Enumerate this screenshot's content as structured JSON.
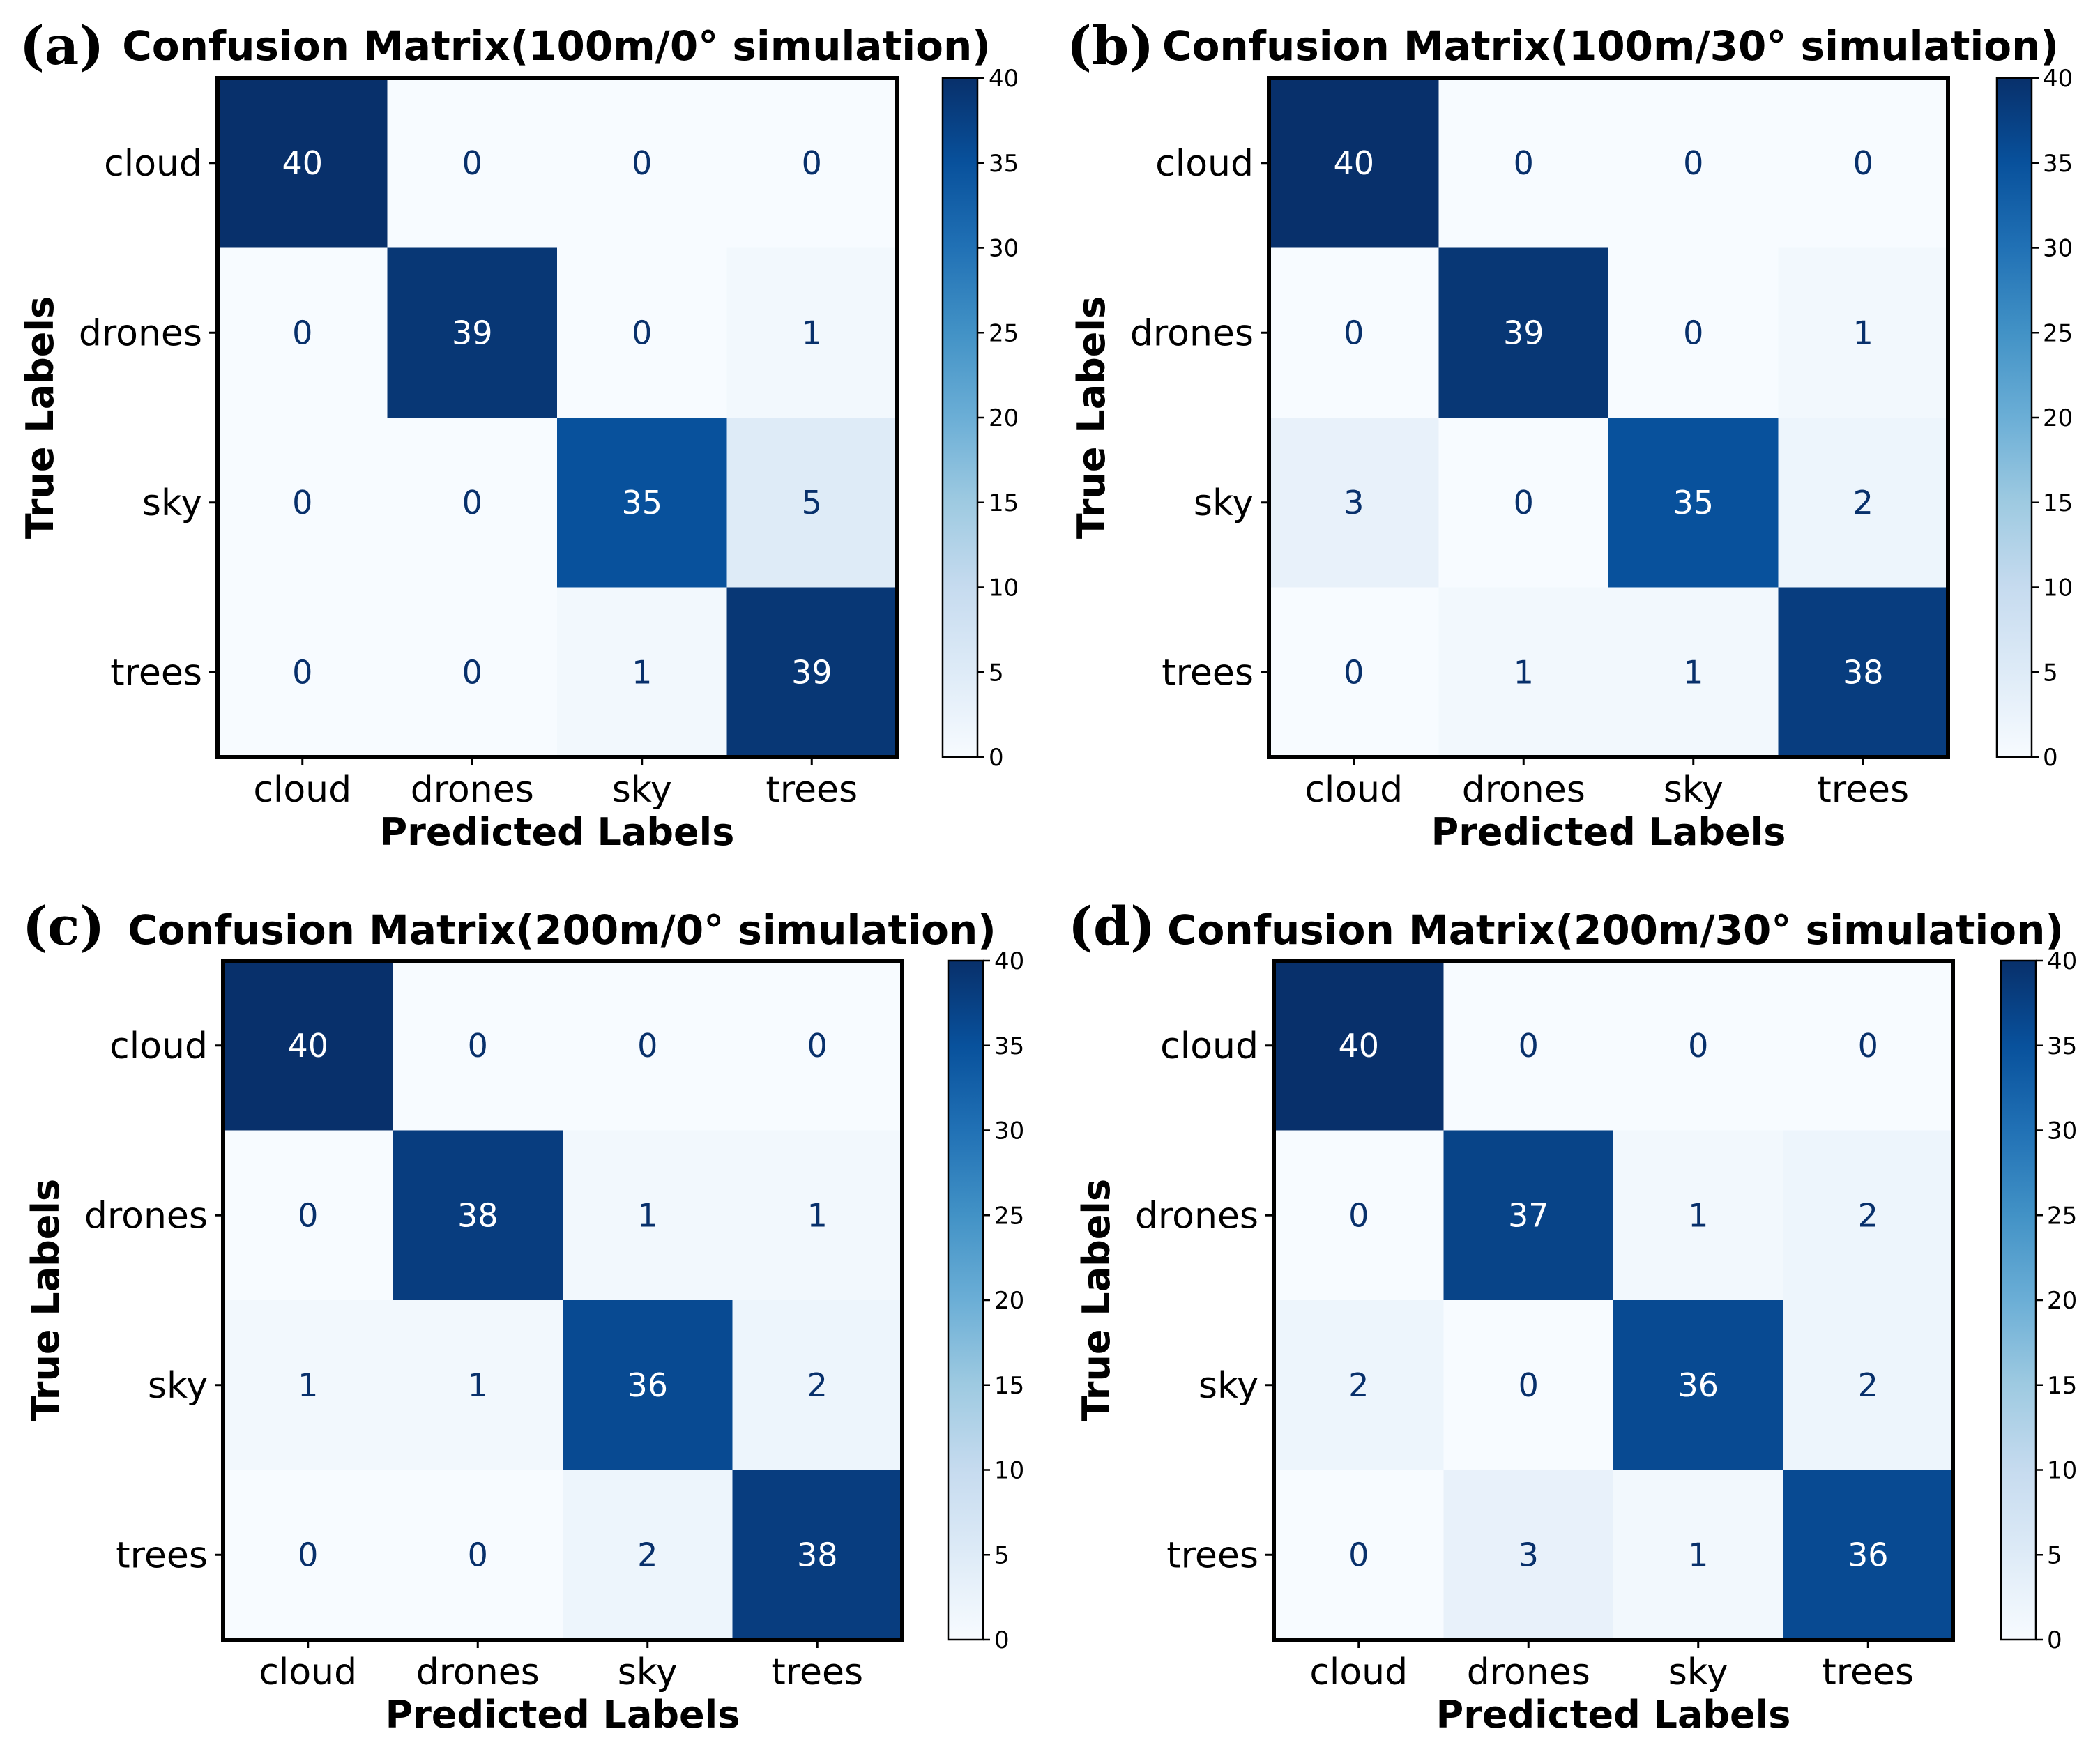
{
  "chart_data": [
    {
      "type": "heatmap",
      "panel": "(a)",
      "title": "Confusion Matrix(100m/0° simulation)",
      "xlabel": "Predicted Labels",
      "ylabel": "True Labels",
      "x_categories": [
        "cloud",
        "drones",
        "sky",
        "trees"
      ],
      "y_categories": [
        "cloud",
        "drones",
        "sky",
        "trees"
      ],
      "values": [
        [
          40,
          0,
          0,
          0
        ],
        [
          0,
          39,
          0,
          1
        ],
        [
          0,
          0,
          35,
          5
        ],
        [
          0,
          0,
          1,
          39
        ]
      ],
      "colorbar": {
        "range": [
          0,
          40
        ],
        "ticks": [
          "0",
          "5",
          "10",
          "15",
          "20",
          "25",
          "30",
          "35",
          "40"
        ],
        "colormap": "Blues"
      }
    },
    {
      "type": "heatmap",
      "panel": "(b)",
      "title": "Confusion Matrix(100m/30° simulation)",
      "xlabel": "Predicted Labels",
      "ylabel": "True Labels",
      "x_categories": [
        "cloud",
        "drones",
        "sky",
        "trees"
      ],
      "y_categories": [
        "cloud",
        "drones",
        "sky",
        "trees"
      ],
      "values": [
        [
          40,
          0,
          0,
          0
        ],
        [
          0,
          39,
          0,
          1
        ],
        [
          3,
          0,
          35,
          2
        ],
        [
          0,
          1,
          1,
          38
        ]
      ],
      "colorbar": {
        "range": [
          0,
          40
        ],
        "ticks": [
          "0",
          "5",
          "10",
          "15",
          "20",
          "25",
          "30",
          "35",
          "40"
        ],
        "colormap": "Blues"
      }
    },
    {
      "type": "heatmap",
      "panel": "(c)",
      "title": "Confusion Matrix(200m/0° simulation)",
      "xlabel": "Predicted Labels",
      "ylabel": "True Labels",
      "x_categories": [
        "cloud",
        "drones",
        "sky",
        "trees"
      ],
      "y_categories": [
        "cloud",
        "drones",
        "sky",
        "trees"
      ],
      "values": [
        [
          40,
          0,
          0,
          0
        ],
        [
          0,
          38,
          1,
          1
        ],
        [
          1,
          1,
          36,
          2
        ],
        [
          0,
          0,
          2,
          38
        ]
      ],
      "colorbar": {
        "range": [
          0,
          40
        ],
        "ticks": [
          "0",
          "5",
          "10",
          "15",
          "20",
          "25",
          "30",
          "35",
          "40"
        ],
        "colormap": "Blues"
      }
    },
    {
      "type": "heatmap",
      "panel": "(d)",
      "title": "Confusion Matrix(200m/30° simulation)",
      "xlabel": "Predicted Labels",
      "ylabel": "True Labels",
      "x_categories": [
        "cloud",
        "drones",
        "sky",
        "trees"
      ],
      "y_categories": [
        "cloud",
        "drones",
        "sky",
        "trees"
      ],
      "values": [
        [
          40,
          0,
          0,
          0
        ],
        [
          0,
          37,
          1,
          2
        ],
        [
          2,
          0,
          36,
          2
        ],
        [
          0,
          3,
          1,
          36
        ]
      ],
      "colorbar": {
        "range": [
          0,
          40
        ],
        "ticks": [
          "0",
          "5",
          "10",
          "15",
          "20",
          "25",
          "30",
          "35",
          "40"
        ],
        "colormap": "Blues"
      }
    }
  ]
}
